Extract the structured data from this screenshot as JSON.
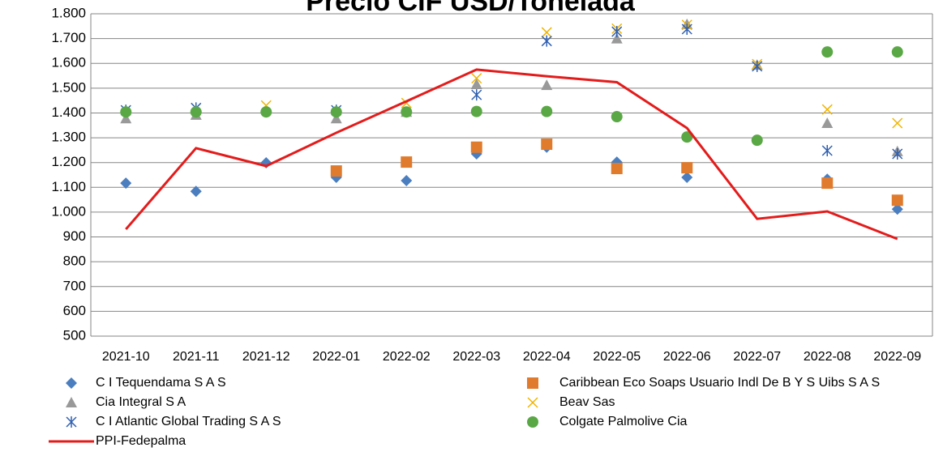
{
  "chart_data": {
    "type": "scatter",
    "title": "Precio CIF USD/Tonelada",
    "categories": [
      "2021-10",
      "2021-11",
      "2021-12",
      "2022-01",
      "2022-02",
      "2022-03",
      "2022-04",
      "2022-05",
      "2022-06",
      "2022-07",
      "2022-08",
      "2022-09"
    ],
    "ylim": [
      500,
      1800
    ],
    "yticks": [
      500,
      600,
      700,
      800,
      900,
      {
        "value": 1000,
        "label": "1.000"
      },
      {
        "value": 1100,
        "label": "1.100"
      },
      {
        "value": 1200,
        "label": "1.200"
      },
      {
        "value": 1300,
        "label": "1.300"
      },
      {
        "value": 1400,
        "label": "1.400"
      },
      {
        "value": 1500,
        "label": "1.500"
      },
      {
        "value": 1600,
        "label": "1.600"
      },
      {
        "value": 1700,
        "label": "1.700"
      },
      {
        "value": 1800,
        "label": "1.800"
      }
    ],
    "grid": true,
    "legend": "bottom",
    "series": [
      {
        "name": "C I Tequendama S A S",
        "color": "#4a7ebf",
        "style": "diamond",
        "values": [
          1117,
          1084,
          1199,
          1140,
          1127,
          1235,
          1262,
          1202,
          1140,
          null,
          1133,
          1012
        ]
      },
      {
        "name": "Caribbean Eco Soaps Usuario Indl De B Y S Uibs S A S",
        "color": "#e07b2e",
        "style": "square",
        "values": [
          null,
          null,
          null,
          1166,
          1202,
          1262,
          1274,
          1176,
          1179,
          null,
          1117,
          1048
        ]
      },
      {
        "name": "Cia Integral S A",
        "color": "#999999",
        "style": "triangle",
        "values": [
          1378,
          1392,
          null,
          1378,
          1404,
          1516,
          1512,
          1700,
          1758,
          1594,
          1359,
          1245
        ]
      },
      {
        "name": "Beav Sas",
        "color": "#f0b400",
        "style": "cross",
        "values": [
          null,
          null,
          1430,
          null,
          1440,
          1540,
          1725,
          1740,
          1755,
          1597,
          1414,
          1359
        ]
      },
      {
        "name": "C I Atlantic Global Trading S A S",
        "color": "#3060b0",
        "style": "asterisk",
        "values": [
          1411,
          1420,
          null,
          1411,
          null,
          1473,
          1690,
          1728,
          1738,
          1588,
          1248,
          1235
        ]
      },
      {
        "name": "Colgate Palmolive Cia",
        "color": "#5aa845",
        "style": "circle",
        "values": [
          1404,
          1404,
          1404,
          1404,
          1404,
          1406,
          1406,
          1385,
          1303,
          1290,
          1646,
          1646
        ]
      },
      {
        "name": "PPI-Fedepalma",
        "color": "#e41b1b",
        "style": "line",
        "values": [
          931,
          1258,
          1186,
          1320,
          1447,
          1575,
          1548,
          1524,
          1339,
          973,
          1003,
          892
        ]
      }
    ]
  }
}
